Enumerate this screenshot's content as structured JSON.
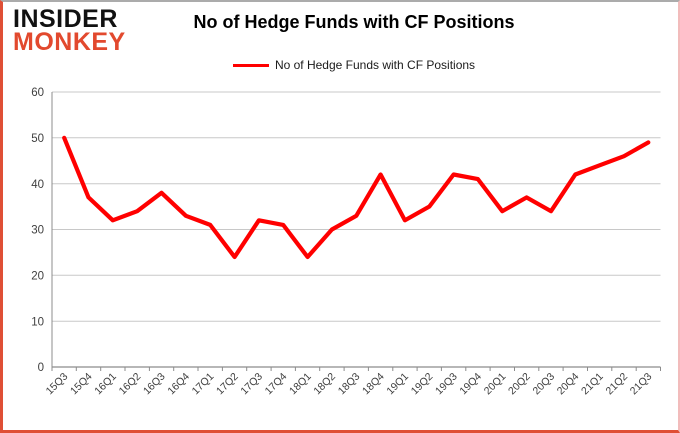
{
  "logo": {
    "line1": "INSIDER",
    "line2": "MONKEY"
  },
  "header": {
    "title": "No of Hedge Funds with CF Positions"
  },
  "legend": {
    "label": "No of Hedge Funds with CF Positions"
  },
  "colors": {
    "series_line": "#ff0000",
    "grid_line": "#c8c8c8",
    "axis_line": "#8c8c8c",
    "tick_label": "#3f3f3f",
    "logo_insider": "#111111",
    "logo_monkey": "#e2492e"
  },
  "chart_data": {
    "type": "line",
    "title": "No of Hedge Funds with CF Positions",
    "xlabel": "",
    "ylabel": "",
    "ylim": [
      0,
      60
    ],
    "yticks": [
      0,
      10,
      20,
      30,
      40,
      50,
      60
    ],
    "grid": true,
    "legend_position": "top",
    "categories": [
      "15Q3",
      "15Q4",
      "16Q1",
      "16Q2",
      "16Q3",
      "16Q4",
      "17Q1",
      "17Q2",
      "17Q3",
      "17Q4",
      "18Q1",
      "18Q2",
      "18Q3",
      "18Q4",
      "19Q1",
      "19Q2",
      "19Q3",
      "19Q4",
      "20Q1",
      "20Q2",
      "20Q3",
      "20Q4",
      "21Q1",
      "21Q2",
      "21Q3"
    ],
    "series": [
      {
        "name": "No of Hedge Funds with CF Positions",
        "color": "#ff0000",
        "values": [
          50,
          37,
          32,
          34,
          38,
          33,
          31,
          24,
          32,
          31,
          24,
          30,
          33,
          42,
          32,
          35,
          42,
          41,
          34,
          37,
          34,
          42,
          44,
          46,
          49
        ]
      }
    ]
  }
}
